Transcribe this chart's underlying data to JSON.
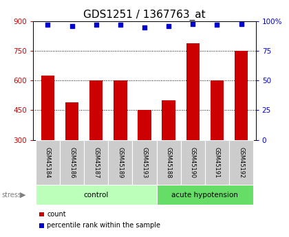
{
  "title": "GDS1251 / 1367763_at",
  "samples": [
    "GSM45184",
    "GSM45186",
    "GSM45187",
    "GSM45189",
    "GSM45193",
    "GSM45188",
    "GSM45190",
    "GSM45191",
    "GSM45192"
  ],
  "counts": [
    625,
    490,
    602,
    602,
    452,
    500,
    790,
    600,
    750
  ],
  "percentiles": [
    97,
    96,
    97,
    97,
    95,
    96,
    98,
    97,
    98
  ],
  "groups": [
    "control",
    "control",
    "control",
    "control",
    "control",
    "acute hypotension",
    "acute hypotension",
    "acute hypotension",
    "acute hypotension"
  ],
  "group_colors": {
    "control": "#bbffbb",
    "acute hypotension": "#66dd66"
  },
  "bar_color": "#cc0000",
  "dot_color": "#0000cc",
  "ylim_left": [
    300,
    900
  ],
  "ylim_right": [
    0,
    100
  ],
  "yticks_left": [
    300,
    450,
    600,
    750,
    900
  ],
  "yticks_right": [
    0,
    25,
    50,
    75,
    100
  ],
  "grid_lines": [
    450,
    600,
    750
  ],
  "title_fontsize": 11,
  "axis_color_left": "#cc0000",
  "axis_color_right": "#0000cc",
  "tick_box_color": "#cccccc",
  "legend_items": [
    {
      "color": "#cc0000",
      "label": "count"
    },
    {
      "color": "#0000cc",
      "label": "percentile rank within the sample"
    }
  ]
}
